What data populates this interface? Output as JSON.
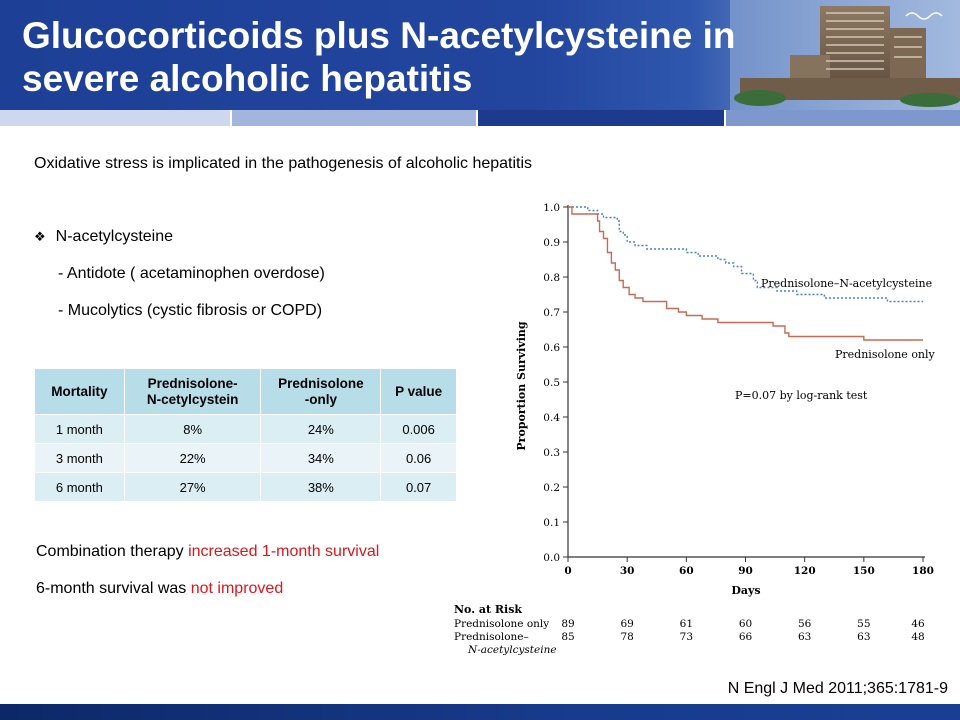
{
  "header": {
    "title_line1": "Glucocorticoids plus N-acetylcysteine in",
    "title_line2": "severe alcoholic hepatitis"
  },
  "intro": "Oxidative stress is implicated in the pathogenesis of alcoholic hepatitis",
  "bullets": {
    "main": "N-acetylcysteine",
    "sub1": "-  Antidote ( acetaminophen  overdose)",
    "sub2": "-  Mucolytics (cystic fibrosis or COPD)"
  },
  "table": {
    "headers": [
      "Mortality",
      "Prednisolone-N-cetylcystein",
      "Prednisolone -only",
      "P value"
    ],
    "header_lines": {
      "h2a": "Prednisolone-",
      "h2b": "N-cetylcystein",
      "h3a": "Prednisolone",
      "h3b": "-only"
    },
    "rows": [
      [
        "1 month",
        "8%",
        "24%",
        "0.006"
      ],
      [
        "3 month",
        "22%",
        "34%",
        "0.06"
      ],
      [
        "6 month",
        "27%",
        "38%",
        "0.07"
      ]
    ]
  },
  "conclusion": {
    "line1_prefix": "Combination  therapy ",
    "line1_highlight": "increased 1-month survival",
    "line2_prefix": "6-month  survival was ",
    "line2_highlight": "not improved"
  },
  "citation": "N Engl J Med 2011;365:1781-9",
  "chart_data": {
    "type": "line",
    "ylabel": "Proportion Surviving",
    "xlabel": "Days",
    "xlim": [
      0,
      180
    ],
    "ylim": [
      0.0,
      1.0
    ],
    "x_ticks": [
      "0",
      "30",
      "60",
      "90",
      "120",
      "150",
      "180"
    ],
    "y_ticks": [
      "0.0",
      "0.1",
      "0.2",
      "0.3",
      "0.4",
      "0.5",
      "0.6",
      "0.7",
      "0.8",
      "0.9",
      "1.0"
    ],
    "annotation": "P=0.07 by log-rank test",
    "series": [
      {
        "name": "Prednisolone–N-acetylcysteine",
        "color": "#4a7fd0",
        "style": "dotted",
        "points": [
          [
            0,
            1.0
          ],
          [
            8,
            1.0
          ],
          [
            10,
            0.99
          ],
          [
            15,
            0.98
          ],
          [
            18,
            0.97
          ],
          [
            25,
            0.96
          ],
          [
            26,
            0.93
          ],
          [
            28,
            0.92
          ],
          [
            30,
            0.9
          ],
          [
            34,
            0.89
          ],
          [
            40,
            0.88
          ],
          [
            46,
            0.88
          ],
          [
            60,
            0.87
          ],
          [
            66,
            0.86
          ],
          [
            72,
            0.86
          ],
          [
            76,
            0.85
          ],
          [
            80,
            0.84
          ],
          [
            84,
            0.83
          ],
          [
            88,
            0.81
          ],
          [
            94,
            0.79
          ],
          [
            96,
            0.77
          ],
          [
            106,
            0.76
          ],
          [
            116,
            0.75
          ],
          [
            125,
            0.75
          ],
          [
            130,
            0.74
          ],
          [
            150,
            0.74
          ],
          [
            162,
            0.73
          ],
          [
            170,
            0.73
          ],
          [
            180,
            0.73
          ]
        ]
      },
      {
        "name": "Prednisolone only",
        "color": "#c86a55",
        "style": "solid",
        "points": [
          [
            0,
            1.0
          ],
          [
            2,
            0.98
          ],
          [
            10,
            0.98
          ],
          [
            15,
            0.96
          ],
          [
            16,
            0.93
          ],
          [
            18,
            0.91
          ],
          [
            20,
            0.87
          ],
          [
            22,
            0.84
          ],
          [
            24,
            0.82
          ],
          [
            26,
            0.79
          ],
          [
            28,
            0.77
          ],
          [
            31,
            0.75
          ],
          [
            34,
            0.74
          ],
          [
            38,
            0.73
          ],
          [
            45,
            0.73
          ],
          [
            50,
            0.71
          ],
          [
            56,
            0.7
          ],
          [
            60,
            0.69
          ],
          [
            68,
            0.68
          ],
          [
            76,
            0.67
          ],
          [
            88,
            0.67
          ],
          [
            96,
            0.67
          ],
          [
            104,
            0.66
          ],
          [
            110,
            0.64
          ],
          [
            112,
            0.63
          ],
          [
            122,
            0.63
          ],
          [
            140,
            0.63
          ],
          [
            150,
            0.62
          ],
          [
            160,
            0.62
          ],
          [
            180,
            0.62
          ]
        ]
      }
    ],
    "at_risk": {
      "title": "No. at Risk",
      "row1_label": "Prednisolone only",
      "row1": [
        "89",
        "69",
        "61",
        "60",
        "56",
        "55",
        "46"
      ],
      "row2_label": "Prednisolone–",
      "row2_label_cont": "N-acetylcysteine",
      "row2": [
        "85",
        "78",
        "73",
        "66",
        "63",
        "63",
        "48"
      ]
    }
  }
}
